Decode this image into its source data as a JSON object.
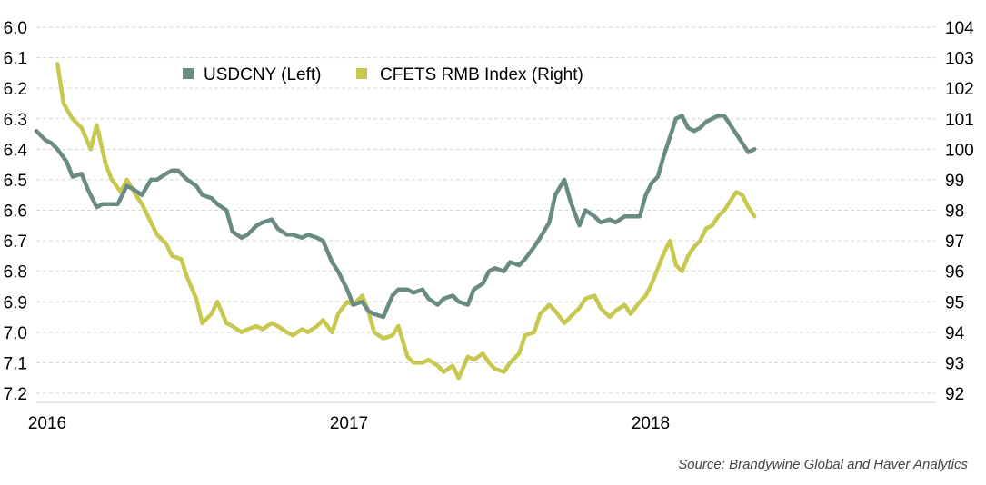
{
  "chart_data": {
    "type": "line",
    "title": "",
    "source": "Source: Brandywine Global and Haver Analytics",
    "x_tick_labels": [
      "2016",
      "2017",
      "2018"
    ],
    "x_range": [
      2016.0,
      2019.0
    ],
    "left_axis": {
      "ticks": [
        "6.0",
        "6.1",
        "6.2",
        "6.3",
        "6.4",
        "6.5",
        "6.6",
        "6.7",
        "6.8",
        "6.9",
        "7.0",
        "7.1",
        "7.2"
      ],
      "range": [
        6.0,
        7.2
      ],
      "inverted": true
    },
    "right_axis": {
      "ticks": [
        "104",
        "103",
        "102",
        "101",
        "100",
        "99",
        "98",
        "97",
        "96",
        "95",
        "94",
        "93",
        "92"
      ],
      "range": [
        92,
        104
      ]
    },
    "grid": true,
    "legend_position": "top-center",
    "series": [
      {
        "name": "USDCNY (Left)",
        "axis": "left",
        "color": "#6a8a84",
        "x": [
          2016.0,
          2016.03,
          2016.05,
          2016.07,
          2016.1,
          2016.12,
          2016.15,
          2016.17,
          2016.2,
          2016.22,
          2016.27,
          2016.3,
          2016.32,
          2016.35,
          2016.38,
          2016.4,
          2016.43,
          2016.45,
          2016.47,
          2016.5,
          2016.53,
          2016.55,
          2016.58,
          2016.6,
          2016.63,
          2016.65,
          2016.68,
          2016.7,
          2016.73,
          2016.75,
          2016.78,
          2016.8,
          2016.83,
          2016.85,
          2016.88,
          2016.9,
          2016.93,
          2016.95,
          2016.98,
          2017.0,
          2017.03,
          2017.05,
          2017.08,
          2017.1,
          2017.12,
          2017.15,
          2017.18,
          2017.2,
          2017.23,
          2017.25,
          2017.28,
          2017.3,
          2017.33,
          2017.35,
          2017.38,
          2017.4,
          2017.43,
          2017.45,
          2017.48,
          2017.5,
          2017.52,
          2017.55,
          2017.57,
          2017.6,
          2017.62,
          2017.65,
          2017.67,
          2017.7,
          2017.72,
          2017.75,
          2017.77,
          2017.8,
          2017.82,
          2017.85,
          2017.87,
          2017.9,
          2017.92,
          2017.95,
          2017.97,
          2018.0,
          2018.02,
          2018.04,
          2018.06,
          2018.08,
          2018.1,
          2018.12,
          2018.14,
          2018.16,
          2018.18,
          2018.2,
          2018.22,
          2018.24,
          2018.26,
          2018.28,
          2018.3,
          2018.32,
          2018.34,
          2018.36,
          2018.38
        ],
        "values": [
          6.34,
          6.37,
          6.38,
          6.4,
          6.44,
          6.49,
          6.48,
          6.53,
          6.59,
          6.58,
          6.58,
          6.52,
          6.53,
          6.55,
          6.5,
          6.5,
          6.48,
          6.47,
          6.47,
          6.5,
          6.52,
          6.55,
          6.56,
          6.58,
          6.6,
          6.67,
          6.69,
          6.68,
          6.65,
          6.64,
          6.63,
          6.66,
          6.68,
          6.68,
          6.69,
          6.68,
          6.69,
          6.7,
          6.77,
          6.8,
          6.86,
          6.91,
          6.9,
          6.93,
          6.94,
          6.95,
          6.88,
          6.86,
          6.86,
          6.87,
          6.86,
          6.89,
          6.91,
          6.89,
          6.88,
          6.9,
          6.91,
          6.86,
          6.84,
          6.8,
          6.79,
          6.8,
          6.77,
          6.78,
          6.76,
          6.72,
          6.69,
          6.64,
          6.55,
          6.5,
          6.57,
          6.65,
          6.6,
          6.62,
          6.64,
          6.63,
          6.64,
          6.62,
          6.62,
          6.62,
          6.55,
          6.51,
          6.49,
          6.42,
          6.36,
          6.3,
          6.29,
          6.33,
          6.34,
          6.33,
          6.31,
          6.3,
          6.29,
          6.29,
          6.32,
          6.35,
          6.38,
          6.41,
          6.4
        ]
      },
      {
        "name": "CFETS RMB Index (Right)",
        "axis": "right",
        "color": "#c8c84f",
        "x": [
          2016.07,
          2016.09,
          2016.12,
          2016.15,
          2016.18,
          2016.2,
          2016.23,
          2016.25,
          2016.28,
          2016.3,
          2016.33,
          2016.35,
          2016.38,
          2016.4,
          2016.43,
          2016.45,
          2016.48,
          2016.5,
          2016.53,
          2016.55,
          2016.58,
          2016.6,
          2016.63,
          2016.65,
          2016.68,
          2016.7,
          2016.73,
          2016.75,
          2016.78,
          2016.8,
          2016.83,
          2016.85,
          2016.88,
          2016.9,
          2016.93,
          2016.95,
          2016.98,
          2017.0,
          2017.03,
          2017.05,
          2017.08,
          2017.1,
          2017.12,
          2017.15,
          2017.18,
          2017.2,
          2017.23,
          2017.25,
          2017.28,
          2017.3,
          2017.33,
          2017.35,
          2017.38,
          2017.4,
          2017.43,
          2017.45,
          2017.48,
          2017.5,
          2017.52,
          2017.55,
          2017.57,
          2017.6,
          2017.62,
          2017.65,
          2017.67,
          2017.7,
          2017.72,
          2017.75,
          2017.77,
          2017.8,
          2017.82,
          2017.85,
          2017.87,
          2017.9,
          2017.92,
          2017.95,
          2017.97,
          2018.0,
          2018.02,
          2018.04,
          2018.06,
          2018.08,
          2018.1,
          2018.12,
          2018.14,
          2018.16,
          2018.18,
          2018.2,
          2018.22,
          2018.24,
          2018.26,
          2018.28,
          2018.3,
          2018.32,
          2018.34,
          2018.36,
          2018.38
        ],
        "values": [
          102.8,
          101.5,
          101.0,
          100.7,
          100.0,
          100.8,
          99.5,
          99.0,
          98.6,
          99.0,
          98.5,
          98.2,
          97.6,
          97.2,
          96.9,
          96.5,
          96.4,
          95.8,
          95.1,
          94.3,
          94.6,
          95.0,
          94.3,
          94.2,
          94.0,
          94.1,
          94.2,
          94.1,
          94.3,
          94.2,
          94.0,
          93.9,
          94.1,
          94.0,
          94.2,
          94.4,
          94.0,
          94.6,
          95.0,
          94.9,
          95.2,
          94.7,
          94.0,
          93.8,
          93.9,
          94.2,
          93.2,
          93.0,
          93.0,
          93.1,
          92.9,
          92.7,
          92.9,
          92.5,
          93.2,
          93.1,
          93.3,
          93.0,
          92.8,
          92.7,
          93.0,
          93.3,
          93.9,
          94.0,
          94.6,
          94.9,
          94.7,
          94.3,
          94.5,
          94.8,
          95.1,
          95.2,
          94.8,
          94.5,
          94.7,
          94.9,
          94.6,
          95.0,
          95.2,
          95.6,
          96.1,
          96.6,
          97.0,
          96.2,
          96.0,
          96.5,
          96.8,
          97.0,
          97.4,
          97.5,
          97.8,
          98.0,
          98.3,
          98.6,
          98.5,
          98.1,
          97.8
        ]
      }
    ]
  }
}
